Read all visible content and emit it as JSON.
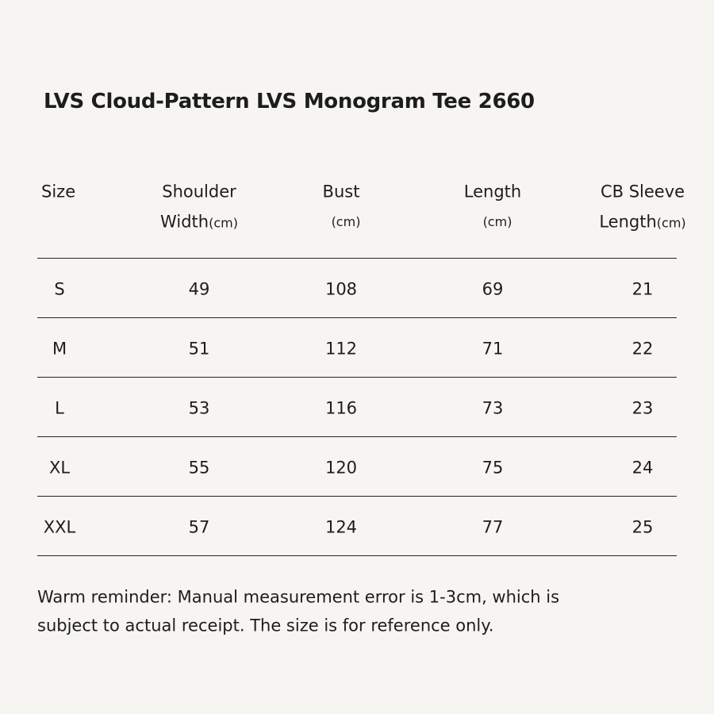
{
  "title": "LVS Cloud-Pattern LVS Monogram Tee 2660",
  "table": {
    "headers": [
      {
        "lines": [
          "Size"
        ]
      },
      {
        "lines": [
          "Shoulder",
          "Width"
        ],
        "unit": "(cm)"
      },
      {
        "lines": [
          "Bust"
        ],
        "unit": "(cm)"
      },
      {
        "lines": [
          "Length"
        ],
        "unit": "(cm)"
      },
      {
        "lines": [
          "CB Sleeve",
          "Length"
        ],
        "unit": "(cm)"
      }
    ],
    "rows": [
      [
        "S",
        49,
        108,
        69,
        21
      ],
      [
        "M",
        51,
        112,
        71,
        22
      ],
      [
        "L",
        53,
        116,
        73,
        23
      ],
      [
        "XL",
        55,
        120,
        75,
        24
      ],
      [
        "XXL",
        57,
        124,
        77,
        25
      ]
    ]
  },
  "note": [
    "Warm reminder: Manual measurement error is 1-3cm, which is",
    "subject to actual receipt. The size is for reference only."
  ]
}
